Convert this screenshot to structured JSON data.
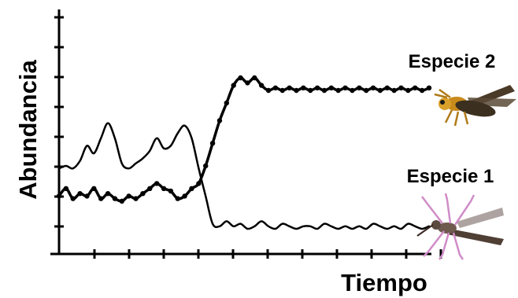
{
  "chart_data": {
    "type": "line",
    "xlabel": "Tiempo",
    "ylabel": "Abundancia",
    "grid": false,
    "x_ticks": 11,
    "y_ticks": 8,
    "series": [
      {
        "name": "Especie 1",
        "style": "solid",
        "color": "#000000",
        "x": [
          0,
          2,
          4,
          6,
          8,
          10,
          12,
          14,
          16,
          18,
          20,
          22,
          24,
          26,
          28,
          30,
          32,
          34,
          36,
          38,
          40,
          42,
          44,
          46,
          48,
          50,
          52,
          54,
          56,
          58,
          60,
          62,
          64,
          66,
          68,
          70,
          72,
          74,
          76,
          78,
          80,
          82,
          84,
          86,
          88,
          90,
          92,
          94,
          96,
          98,
          100,
          102,
          104,
          106
        ],
        "y": [
          3.4,
          3.5,
          3.4,
          3.7,
          4.3,
          4.0,
          4.6,
          5.2,
          4.6,
          3.6,
          3.4,
          3.6,
          3.8,
          4.1,
          4.6,
          4.2,
          4.3,
          4.8,
          5.1,
          4.6,
          3.4,
          2.3,
          1.2,
          1.1,
          1.3,
          1.1,
          1.2,
          1.0,
          1.1,
          1.3,
          1.1,
          1.0,
          1.2,
          1.1,
          1.0,
          1.1,
          1.1,
          1.0,
          1.2,
          1.1,
          1.0,
          1.1,
          1.0,
          1.1,
          1.0,
          1.2,
          1.1,
          1.0,
          1.1,
          1.0,
          1.2,
          1.1,
          1.0,
          1.1
        ]
      },
      {
        "name": "Especie 2",
        "style": "dotted",
        "color": "#000000",
        "x": [
          0,
          2,
          4,
          6,
          8,
          10,
          12,
          14,
          16,
          18,
          20,
          22,
          24,
          26,
          28,
          30,
          32,
          34,
          36,
          38,
          40,
          42,
          44,
          46,
          48,
          50,
          52,
          54,
          56,
          58,
          60,
          62,
          64,
          66,
          68,
          70,
          72,
          74,
          76,
          78,
          80,
          82,
          84,
          86,
          88,
          90,
          92,
          94,
          96,
          98,
          100,
          102,
          104,
          106
        ],
        "y": [
          2.3,
          2.6,
          2.2,
          2.4,
          2.3,
          2.6,
          2.2,
          2.4,
          2.2,
          2.1,
          2.3,
          2.2,
          2.4,
          2.6,
          2.8,
          2.6,
          2.5,
          2.2,
          2.3,
          2.6,
          2.8,
          3.5,
          4.4,
          5.3,
          6.0,
          6.7,
          7.0,
          6.8,
          7.0,
          6.7,
          6.5,
          6.6,
          6.5,
          6.6,
          6.5,
          6.6,
          6.5,
          6.6,
          6.5,
          6.6,
          6.5,
          6.6,
          6.5,
          6.6,
          6.5,
          6.6,
          6.5,
          6.6,
          6.5,
          6.6,
          6.5,
          6.6,
          6.5,
          6.6
        ]
      }
    ],
    "annotations": [
      {
        "text": "Especie 2",
        "icon": "wasp-icon"
      },
      {
        "text": "Especie 1",
        "icon": "mosquito-icon"
      }
    ]
  }
}
